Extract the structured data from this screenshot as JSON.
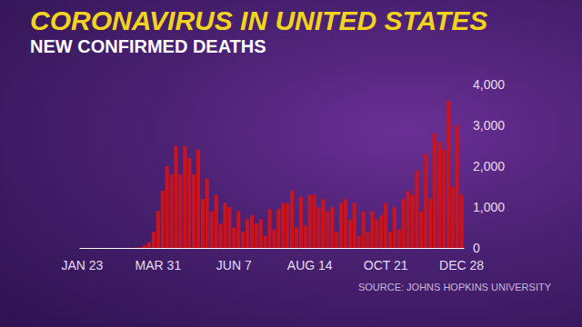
{
  "chart_data": {
    "type": "bar",
    "title": "CORONAVIRUS IN UNITED STATES",
    "subtitle": "NEW CONFIRMED DEATHS",
    "source": "SOURCE: JOHNS HOPKINS UNIVERSITY",
    "categories": [
      "JAN 23",
      null,
      null,
      null,
      null,
      null,
      null,
      null,
      null,
      null,
      null,
      null,
      null,
      null,
      null,
      null,
      null,
      "MAR 31",
      null,
      null,
      null,
      null,
      null,
      null,
      null,
      null,
      null,
      null,
      null,
      null,
      null,
      null,
      null,
      null,
      "JUN 7",
      null,
      null,
      null,
      null,
      null,
      null,
      null,
      null,
      null,
      null,
      null,
      null,
      null,
      null,
      null,
      null,
      "AUG 14",
      null,
      null,
      null,
      null,
      null,
      null,
      null,
      null,
      null,
      null,
      null,
      null,
      null,
      null,
      null,
      null,
      "OCT 21",
      null,
      null,
      null,
      null,
      null,
      null,
      null,
      null,
      null,
      null,
      null,
      null,
      null,
      null,
      null,
      null,
      "DEC 28"
    ],
    "values": [
      0,
      0,
      0,
      0,
      0,
      0,
      0,
      0,
      0,
      0,
      5,
      3,
      10,
      15,
      60,
      140,
      400,
      900,
      1400,
      2000,
      1800,
      2500,
      1800,
      2500,
      2200,
      1800,
      2400,
      1200,
      1700,
      900,
      1300,
      600,
      1100,
      1000,
      500,
      900,
      400,
      700,
      800,
      600,
      700,
      300,
      950,
      450,
      950,
      1100,
      1100,
      1400,
      500,
      1250,
      550,
      1300,
      1300,
      1000,
      1200,
      900,
      1000,
      400,
      1100,
      1200,
      700,
      1100,
      300,
      900,
      400,
      900,
      700,
      800,
      1100,
      400,
      1000,
      450,
      1200,
      1400,
      1300,
      1900,
      900,
      2300,
      1200,
      2800,
      2600,
      2400,
      3600,
      1500,
      3000,
      1300
    ],
    "color": "#c8141e",
    "ylim": [
      0,
      4000
    ],
    "yticks": [
      0,
      {
        "value": 1000,
        "label": "1,000"
      },
      {
        "value": 2000,
        "label": "2,000"
      },
      {
        "value": 3000,
        "label": "3,000"
      },
      {
        "value": 4000,
        "label": "4,000"
      }
    ],
    "grid": false
  }
}
